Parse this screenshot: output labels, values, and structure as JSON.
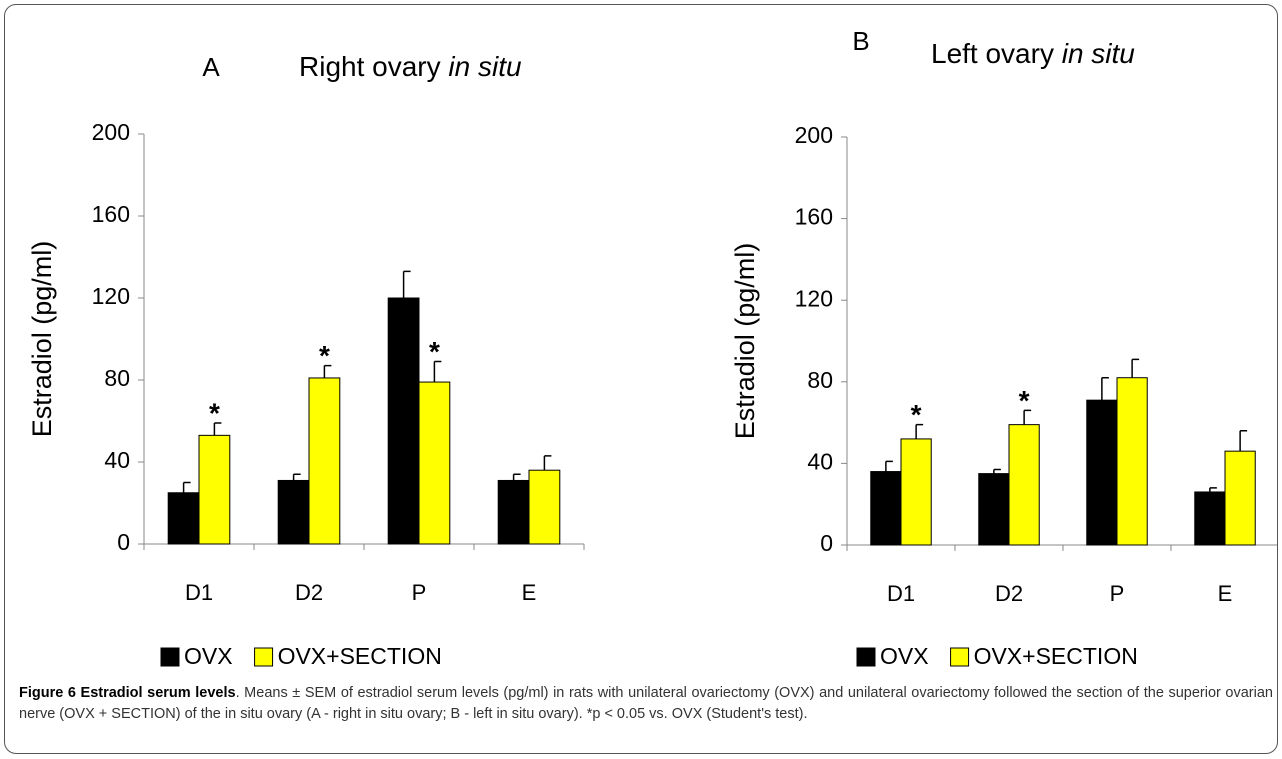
{
  "chart_data": [
    {
      "type": "bar",
      "panel": "A",
      "title": "Right ovary",
      "title_emphasis": "in situ",
      "y_label": "Estradiol (pg/ml)",
      "categories": [
        "D1",
        "D2",
        "P",
        "E"
      ],
      "series": [
        {
          "name": "OVX",
          "color": "#000000",
          "values": [
            25,
            31,
            120,
            31
          ],
          "errors": [
            5,
            3,
            13,
            3
          ],
          "markers": [
            null,
            null,
            null,
            null
          ]
        },
        {
          "name": "OVX+SECTION",
          "color": "#ffff00",
          "values": [
            53,
            81,
            79,
            36
          ],
          "errors": [
            6,
            6,
            10,
            7
          ],
          "markers": [
            "*",
            "*",
            "*",
            null
          ]
        }
      ],
      "ylim": [
        0,
        200
      ],
      "yticks": [
        0,
        40,
        80,
        120,
        160,
        200
      ],
      "legend": "bottom-left"
    },
    {
      "type": "bar",
      "panel": "B",
      "title": "Left ovary",
      "title_emphasis": "in situ",
      "y_label": "Estradiol (pg/ml)",
      "categories": [
        "D1",
        "D2",
        "P",
        "E"
      ],
      "series": [
        {
          "name": "OVX",
          "color": "#000000",
          "values": [
            36,
            35,
            71,
            26
          ],
          "errors": [
            5,
            2,
            11,
            2
          ],
          "markers": [
            null,
            null,
            null,
            null
          ]
        },
        {
          "name": "OVX+SECTION",
          "color": "#ffff00",
          "values": [
            52,
            59,
            82,
            46
          ],
          "errors": [
            7,
            7,
            9,
            10
          ],
          "markers": [
            "*",
            "*",
            null,
            null
          ]
        }
      ],
      "ylim": [
        0,
        200
      ],
      "yticks": [
        0,
        40,
        80,
        120,
        160,
        200
      ],
      "legend": "bottom-left"
    }
  ],
  "caption": {
    "label": "Figure 6 Estradiol serum levels",
    "text": ". Means ± SEM of estradiol serum levels (pg/ml) in rats with unilateral ovariectomy (OVX) and unilateral ovariectomy followed the section of the superior ovarian nerve (OVX + SECTION) of the in situ ovary (A - right in situ ovary; B - left in situ ovary). *p < 0.05 vs. OVX (Student's test)."
  }
}
